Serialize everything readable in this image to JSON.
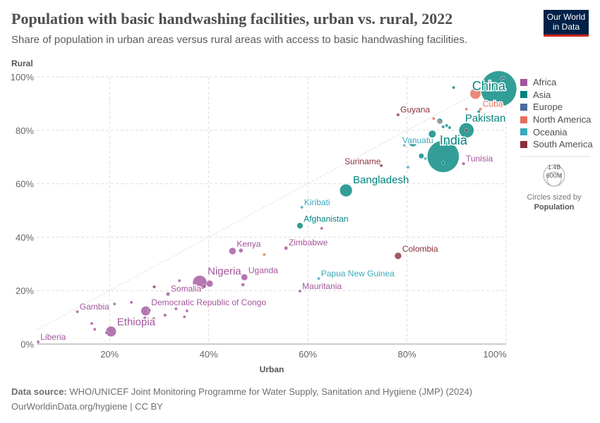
{
  "header": {
    "title": "Population with basic handwashing facilities, urban vs. rural, 2022",
    "subtitle": "Share of population in urban areas versus rural areas with access to basic handwashing facilities.",
    "logo": "Our World in Data"
  },
  "footer": {
    "source_label": "Data source:",
    "source": "WHO/UNICEF Joint Monitoring Programme for Water Supply, Sanitation and Hygiene (JMP) (2024)",
    "link": "OurWorldinData.org/hygiene | CC BY"
  },
  "size_legend": {
    "big": "1.4B",
    "small": "600M",
    "caption": "Circles sized by",
    "variable": "Population"
  },
  "chart_data": {
    "type": "scatter",
    "xlabel": "Urban",
    "ylabel": "Rural",
    "xlim": [
      5.3,
      100
    ],
    "ylim": [
      0,
      100
    ],
    "xticks": [
      "20%",
      "40%",
      "60%",
      "80%",
      "100%"
    ],
    "xtick_values": [
      20,
      40,
      60,
      80,
      100
    ],
    "yticks": [
      "0%",
      "20%",
      "40%",
      "60%",
      "80%",
      "100%"
    ],
    "ytick_values": [
      0,
      20,
      40,
      60,
      80,
      100
    ],
    "grid": true,
    "reference_line": "y=x",
    "legend_placement": "right",
    "legend": [
      {
        "name": "Africa",
        "color": "#a2559c"
      },
      {
        "name": "Asia",
        "color": "#00847e"
      },
      {
        "name": "Europe",
        "color": "#4c6a9c"
      },
      {
        "name": "North America",
        "color": "#e56e5a"
      },
      {
        "name": "Oceania",
        "color": "#38aaba"
      },
      {
        "name": "South America",
        "color": "#883039"
      }
    ],
    "points": [
      {
        "label": "China",
        "x": 98.5,
        "y": 95.5,
        "pop": 1410,
        "region": "Asia"
      },
      {
        "label": "India",
        "x": 87.3,
        "y": 70.2,
        "pop": 1100,
        "region": "Asia"
      },
      {
        "label": "Pakistan",
        "x": 92,
        "y": 80,
        "pop": 240,
        "region": "Asia"
      },
      {
        "label": "Bangladesh",
        "x": 67.7,
        "y": 57.5,
        "pop": 170,
        "region": "Asia"
      },
      {
        "label": "Cuba",
        "x": 94.8,
        "y": 87.9,
        "pop": 11,
        "region": "North America"
      },
      {
        "label": "",
        "x": 93.8,
        "y": 93.7,
        "pop": 128,
        "region": "North America"
      },
      {
        "label": "Guyana",
        "x": 78.2,
        "y": 85.8,
        "pop": 1,
        "region": "South America"
      },
      {
        "label": "Vanuatu",
        "x": 79.5,
        "y": 74.4,
        "pop": 0.3,
        "region": "Oceania"
      },
      {
        "label": "Suriname",
        "x": 74.8,
        "y": 66.8,
        "pop": 0.6,
        "region": "South America"
      },
      {
        "label": "Tunisia",
        "x": 91.4,
        "y": 67.5,
        "pop": 12,
        "region": "Africa"
      },
      {
        "label": "Kiribati",
        "x": 58.8,
        "y": 51.2,
        "pop": 0.1,
        "region": "Oceania"
      },
      {
        "label": "Afghanistan",
        "x": 58.4,
        "y": 44.3,
        "pop": 41,
        "region": "Asia"
      },
      {
        "label": "Zimbabwe",
        "x": 55.6,
        "y": 35.9,
        "pop": 16,
        "region": "Africa"
      },
      {
        "label": "Kenya",
        "x": 44.8,
        "y": 34.8,
        "pop": 54,
        "region": "Africa"
      },
      {
        "label": "Colombia",
        "x": 78.2,
        "y": 33,
        "pop": 52,
        "region": "South America"
      },
      {
        "label": "Papua New Guinea",
        "x": 62.2,
        "y": 24.5,
        "pop": 10,
        "region": "Oceania"
      },
      {
        "label": "Mauritania",
        "x": 58.4,
        "y": 19.8,
        "pop": 4.7,
        "region": "Africa"
      },
      {
        "label": "Uganda",
        "x": 47.2,
        "y": 25,
        "pop": 47,
        "region": "Africa"
      },
      {
        "label": "Nigeria",
        "x": 38.2,
        "y": 23,
        "pop": 220,
        "region": "Africa"
      },
      {
        "label": "Somalia",
        "x": 31.8,
        "y": 18.7,
        "pop": 17,
        "region": "Africa"
      },
      {
        "label": "Democratic Republic of Congo",
        "x": 27.3,
        "y": 12.4,
        "pop": 100,
        "region": "Africa"
      },
      {
        "label": "Gambia",
        "x": 13.5,
        "y": 12.1,
        "pop": 2.7,
        "region": "Africa"
      },
      {
        "label": "Ethiopia",
        "x": 20.3,
        "y": 4.7,
        "pop": 120,
        "region": "Africa"
      },
      {
        "label": "Liberia",
        "x": 5.6,
        "y": 0.8,
        "pop": 5,
        "region": "Africa"
      },
      {
        "label": "",
        "x": 89.4,
        "y": 96,
        "pop": 8,
        "region": "Asia"
      },
      {
        "label": "",
        "x": 99.5,
        "y": 99.7,
        "pop": 8,
        "region": "Asia"
      },
      {
        "label": "",
        "x": 99.1,
        "y": 99.4,
        "pop": 5,
        "region": "Europe"
      },
      {
        "label": "",
        "x": 92,
        "y": 87.9,
        "pop": 4,
        "region": "North America"
      },
      {
        "label": "",
        "x": 94.5,
        "y": 87,
        "pop": 5,
        "region": "Asia"
      },
      {
        "label": "",
        "x": 86.6,
        "y": 83.4,
        "pop": 35,
        "region": "Asia"
      },
      {
        "label": "",
        "x": 85.4,
        "y": 84.4,
        "pop": 3,
        "region": "North America"
      },
      {
        "label": "",
        "x": 86.5,
        "y": 83.2,
        "pop": 3,
        "region": "North America"
      },
      {
        "label": "",
        "x": 87.3,
        "y": 81.3,
        "pop": 6,
        "region": "Asia"
      },
      {
        "label": "",
        "x": 88,
        "y": 81.8,
        "pop": 5,
        "region": "Asia"
      },
      {
        "label": "",
        "x": 88.6,
        "y": 81,
        "pop": 5,
        "region": "Asia"
      },
      {
        "label": "",
        "x": 85.1,
        "y": 78.6,
        "pop": 60,
        "region": "Asia"
      },
      {
        "label": "",
        "x": 81.2,
        "y": 75.5,
        "pop": 80,
        "region": "Asia"
      },
      {
        "label": "",
        "x": 82.9,
        "y": 70.4,
        "pop": 30,
        "region": "Asia"
      },
      {
        "label": "",
        "x": 83.7,
        "y": 69.4,
        "pop": 2,
        "region": "Oceania"
      },
      {
        "label": "",
        "x": 80.2,
        "y": 66.2,
        "pop": 2,
        "region": "Oceania"
      },
      {
        "label": "",
        "x": 87.3,
        "y": 67.8,
        "pop": 2,
        "region": "Asia"
      },
      {
        "label": "",
        "x": 92,
        "y": 80,
        "pop": 2,
        "region": "South America"
      },
      {
        "label": "",
        "x": 46.5,
        "y": 35,
        "pop": 20,
        "region": "Africa"
      },
      {
        "label": "",
        "x": 51.2,
        "y": 33.5,
        "pop": 1,
        "region": "North America"
      },
      {
        "label": "",
        "x": 62.8,
        "y": 43.3,
        "pop": 6,
        "region": "Africa"
      },
      {
        "label": "",
        "x": 46.9,
        "y": 22.2,
        "pop": 14,
        "region": "Africa"
      },
      {
        "label": "",
        "x": 40.2,
        "y": 22.6,
        "pop": 50,
        "region": "Africa"
      },
      {
        "label": "",
        "x": 39.1,
        "y": 21.6,
        "pop": 14,
        "region": "Africa"
      },
      {
        "label": "",
        "x": 29,
        "y": 21.4,
        "pop": 3,
        "region": "South America"
      },
      {
        "label": "",
        "x": 34.1,
        "y": 23.7,
        "pop": 4,
        "region": "Africa"
      },
      {
        "label": "",
        "x": 24.4,
        "y": 15.6,
        "pop": 4,
        "region": "Africa"
      },
      {
        "label": "",
        "x": 21,
        "y": 15,
        "pop": 4,
        "region": "Africa"
      },
      {
        "label": "",
        "x": 28,
        "y": 12.6,
        "pop": 8,
        "region": "Africa"
      },
      {
        "label": "",
        "x": 33.4,
        "y": 13.2,
        "pop": 4,
        "region": "Africa"
      },
      {
        "label": "",
        "x": 35.6,
        "y": 12.4,
        "pop": 4,
        "region": "Africa"
      },
      {
        "label": "",
        "x": 35.1,
        "y": 10.2,
        "pop": 4,
        "region": "Africa"
      },
      {
        "label": "",
        "x": 28.9,
        "y": 9.5,
        "pop": 4,
        "region": "Africa"
      },
      {
        "label": "",
        "x": 31.2,
        "y": 10.8,
        "pop": 12,
        "region": "Africa"
      },
      {
        "label": "",
        "x": 27.1,
        "y": 9.8,
        "pop": 6,
        "region": "Africa"
      },
      {
        "label": "",
        "x": 16.4,
        "y": 7.7,
        "pop": 4,
        "region": "Africa"
      },
      {
        "label": "",
        "x": 17,
        "y": 5.5,
        "pop": 6,
        "region": "Africa"
      },
      {
        "label": "",
        "x": 19.4,
        "y": 4.2,
        "pop": 4,
        "region": "Africa"
      }
    ]
  }
}
